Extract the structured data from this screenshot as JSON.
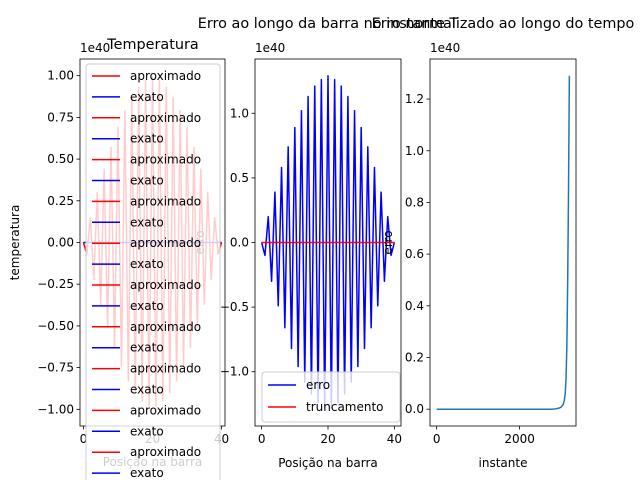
{
  "chart_data": [
    {
      "type": "line",
      "title": "Temperatura",
      "xlabel": "Posição na barra",
      "ylabel": "temperatura",
      "offset_text": "1e40",
      "xlim": [
        -1,
        41
      ],
      "ylim": [
        -1.1,
        1.1
      ],
      "xticks": [
        0,
        20,
        40
      ],
      "yticks": [
        -1.0,
        -0.75,
        -0.5,
        -0.25,
        0.0,
        0.25,
        0.5,
        0.75,
        1.0
      ],
      "ytick_labels": [
        "−1.00",
        "−0.75",
        "−0.50",
        "−0.25",
        "0.00",
        "0.25",
        "0.50",
        "0.75",
        "1.00"
      ],
      "x": [
        0,
        1,
        2,
        3,
        4,
        5,
        6,
        7,
        8,
        9,
        10,
        11,
        12,
        13,
        14,
        15,
        16,
        17,
        18,
        19,
        20,
        21,
        22,
        23,
        24,
        25,
        26,
        27,
        28,
        29,
        30,
        31,
        32,
        33,
        34,
        35,
        36,
        37,
        38,
        39,
        40
      ],
      "series": [
        {
          "name": "aproximado",
          "color": "#ff0000",
          "values": [
            0,
            -0.07,
            0.15,
            -0.22,
            0.3,
            -0.37,
            0.44,
            -0.51,
            0.57,
            -0.63,
            0.69,
            -0.74,
            0.79,
            -0.83,
            0.87,
            -0.9,
            0.93,
            -0.95,
            0.97,
            -0.98,
            0.99,
            -0.98,
            0.97,
            -0.95,
            0.93,
            -0.9,
            0.87,
            -0.83,
            0.79,
            -0.74,
            0.69,
            -0.63,
            0.57,
            -0.51,
            0.44,
            -0.37,
            0.3,
            -0.22,
            0.15,
            -0.07,
            0
          ]
        },
        {
          "name": "exato",
          "color": "#0000ff",
          "values": [
            0,
            0,
            0,
            0,
            0,
            0,
            0,
            0,
            0,
            0,
            0,
            0,
            0,
            0,
            0,
            0,
            0,
            0,
            0,
            0,
            0,
            0,
            0,
            0,
            0,
            0,
            0,
            0,
            0,
            0,
            0,
            0,
            0,
            0,
            0,
            0,
            0,
            0,
            0,
            0,
            0
          ]
        }
      ],
      "legend": {
        "placement": "overlapping, spills below axes",
        "entries": [
          {
            "label": "aproximado",
            "color": "#ff0000"
          },
          {
            "label": "exato",
            "color": "#0000ff"
          },
          {
            "label": "aproximado",
            "color": "#ff0000"
          },
          {
            "label": "exato",
            "color": "#0000ff"
          },
          {
            "label": "aproximado",
            "color": "#ff0000"
          },
          {
            "label": "exato",
            "color": "#0000ff"
          },
          {
            "label": "aproximado",
            "color": "#ff0000"
          },
          {
            "label": "exato",
            "color": "#0000ff"
          },
          {
            "label": "aproximado",
            "color": "#ff0000"
          },
          {
            "label": "exato",
            "color": "#0000ff"
          },
          {
            "label": "aproximado",
            "color": "#ff0000"
          },
          {
            "label": "exato",
            "color": "#0000ff"
          },
          {
            "label": "aproximado",
            "color": "#ff0000"
          },
          {
            "label": "exato",
            "color": "#0000ff"
          },
          {
            "label": "aproximado",
            "color": "#ff0000"
          },
          {
            "label": "exato",
            "color": "#0000ff"
          },
          {
            "label": "aproximado",
            "color": "#ff0000"
          },
          {
            "label": "exato",
            "color": "#0000ff"
          },
          {
            "label": "aproximado",
            "color": "#ff0000"
          },
          {
            "label": "exato",
            "color": "#0000ff"
          }
        ]
      }
    },
    {
      "type": "line",
      "title": "Erro ao longo da barra no instante T",
      "xlabel": "Posição na barra",
      "ylabel": "erro",
      "offset_text": "1e40",
      "xlim": [
        -2,
        42
      ],
      "ylim": [
        -1.42,
        1.42
      ],
      "xticks": [
        0,
        20,
        40
      ],
      "yticks": [
        -1.0,
        -0.5,
        0.0,
        0.5,
        1.0
      ],
      "ytick_labels": [
        "−1.0",
        "−0.5",
        "0.0",
        "0.5",
        "1.0"
      ],
      "x": [
        0,
        1,
        2,
        3,
        4,
        5,
        6,
        7,
        8,
        9,
        10,
        11,
        12,
        13,
        14,
        15,
        16,
        17,
        18,
        19,
        20,
        21,
        22,
        23,
        24,
        25,
        26,
        27,
        28,
        29,
        30,
        31,
        32,
        33,
        34,
        35,
        36,
        37,
        38,
        39,
        40
      ],
      "series": [
        {
          "name": "erro",
          "color": "#0000ff",
          "values": [
            0,
            -0.1,
            0.2,
            -0.3,
            0.39,
            -0.49,
            0.58,
            -0.66,
            0.74,
            -0.82,
            0.89,
            -0.96,
            1.02,
            -1.08,
            1.13,
            -1.17,
            1.21,
            -1.24,
            1.26,
            -1.28,
            1.29,
            -1.28,
            1.26,
            -1.24,
            1.21,
            -1.17,
            1.13,
            -1.08,
            1.02,
            -0.96,
            0.89,
            -0.82,
            0.74,
            -0.66,
            0.58,
            -0.49,
            0.39,
            -0.3,
            0.2,
            -0.1,
            0
          ]
        },
        {
          "name": "truncamento",
          "color": "#ff0000",
          "values": [
            0,
            0,
            0,
            0,
            0,
            0,
            0,
            0,
            0,
            0,
            0,
            0,
            0,
            0,
            0,
            0,
            0,
            0,
            0,
            0,
            0,
            0,
            0,
            0,
            0,
            0,
            0,
            0,
            0,
            0,
            0,
            0,
            0,
            0,
            0,
            0,
            0,
            0,
            0,
            0,
            0
          ]
        }
      ],
      "legend": {
        "placement": "lower-right",
        "entries": [
          {
            "label": "erro",
            "color": "#0000ff"
          },
          {
            "label": "truncamento",
            "color": "#ff0000"
          }
        ]
      }
    },
    {
      "type": "line",
      "title": "Erro normalizado ao longo do tempo",
      "xlabel": "instante",
      "ylabel": "erro",
      "offset_text": "1e40",
      "xlim": [
        -160,
        3360
      ],
      "ylim": [
        -0.065,
        1.355
      ],
      "xticks": [
        0,
        2000
      ],
      "yticks": [
        0.0,
        0.2,
        0.4,
        0.6,
        0.8,
        1.0,
        1.2
      ],
      "ytick_labels": [
        "0.0",
        "0.2",
        "0.4",
        "0.6",
        "0.8",
        "1.0",
        "1.2"
      ],
      "x": [
        0,
        2600,
        2750,
        2850,
        2950,
        3000,
        3050,
        3080,
        3100,
        3120,
        3140,
        3160,
        3180,
        3200
      ],
      "series": [
        {
          "name": "",
          "color": "#1f77b4",
          "values": [
            0,
            0,
            0,
            0.001,
            0.004,
            0.008,
            0.018,
            0.035,
            0.06,
            0.12,
            0.25,
            0.5,
            0.85,
            1.29
          ]
        }
      ]
    }
  ]
}
